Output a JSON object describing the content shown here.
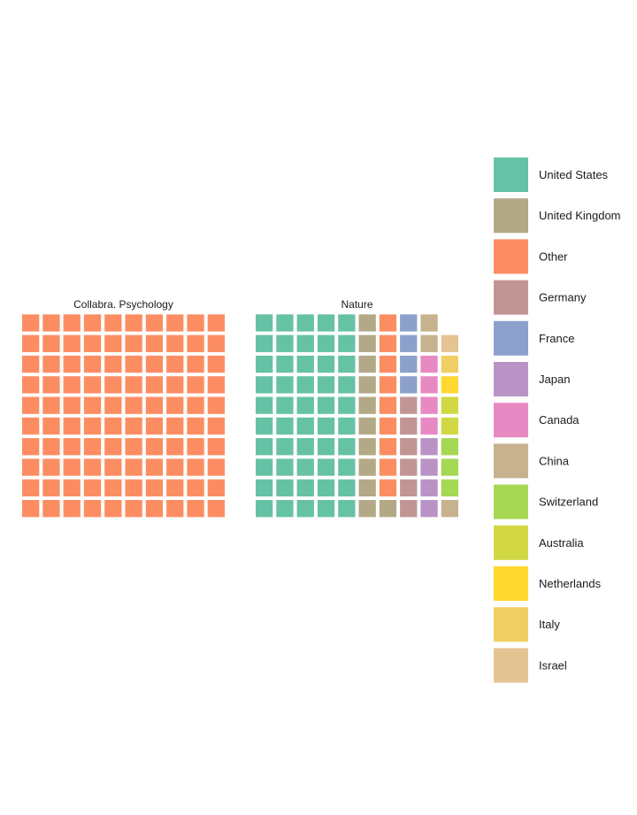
{
  "chart_data": {
    "type": "waffle",
    "units_per_chart": 100,
    "legend": [
      {
        "name": "United States",
        "color": "#66C2A5"
      },
      {
        "name": "United Kingdom",
        "color": "#B3A986"
      },
      {
        "name": "Other",
        "color": "#FC8D62"
      },
      {
        "name": "Germany",
        "color": "#C29595"
      },
      {
        "name": "France",
        "color": "#8DA0CB"
      },
      {
        "name": "Japan",
        "color": "#BA93C6"
      },
      {
        "name": "Canada",
        "color": "#E78AC3"
      },
      {
        "name": "China",
        "color": "#C6B28F"
      },
      {
        "name": "Switzerland",
        "color": "#A6D854"
      },
      {
        "name": "Australia",
        "color": "#D2D843"
      },
      {
        "name": "Netherlands",
        "color": "#FFD92F"
      },
      {
        "name": "Italy",
        "color": "#F1CE63"
      },
      {
        "name": "Israel",
        "color": "#E5C494"
      }
    ],
    "panels": [
      {
        "title": "Collabra. Psychology",
        "counts": {
          "Other": 100
        }
      },
      {
        "title": "Nature",
        "counts": {
          "United States": 50,
          "United Kingdom": 11,
          "Other": 9,
          "Germany": 6,
          "France": 4,
          "Japan": 4,
          "Canada": 4,
          "China": 3,
          "Switzerland": 3,
          "Australia": 2,
          "Netherlands": 1,
          "Italy": 1,
          "Israel": 1
        }
      }
    ]
  }
}
